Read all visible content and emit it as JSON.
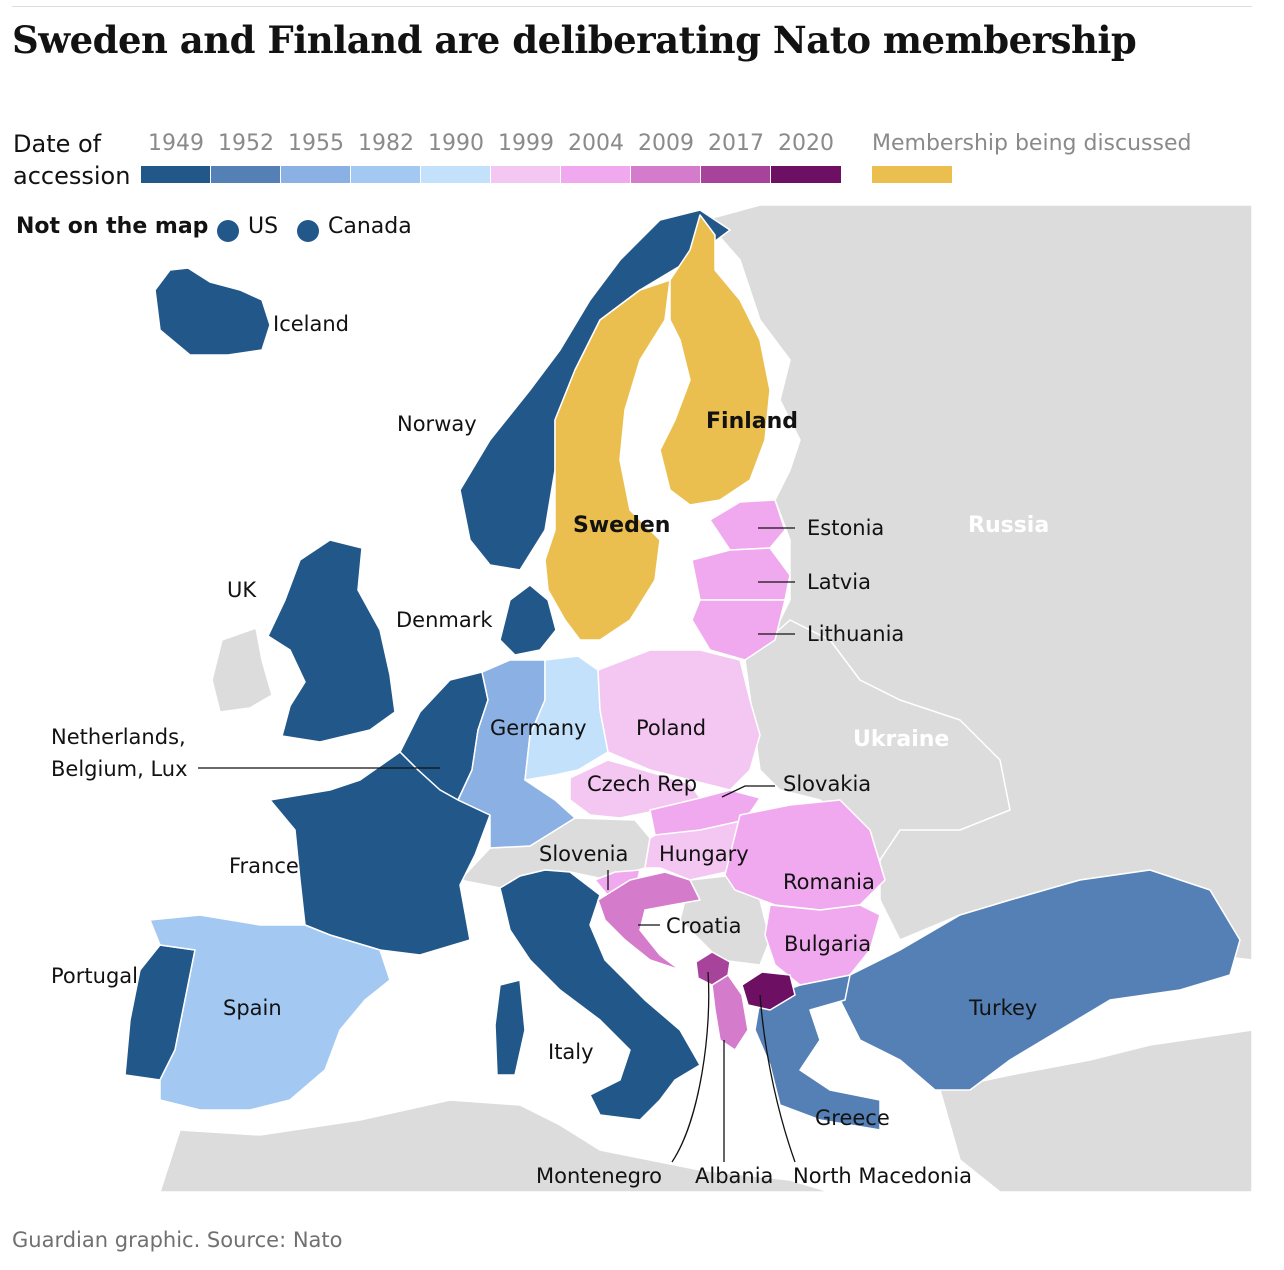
{
  "title": "Sweden and Finland are deliberating Nato membership",
  "legend": {
    "label_line1": "Date of",
    "label_line2": "accession",
    "years": [
      {
        "year": "1949",
        "color": "#22578a"
      },
      {
        "year": "1952",
        "color": "#5480b5"
      },
      {
        "year": "1955",
        "color": "#8bb0e4"
      },
      {
        "year": "1982",
        "color": "#a3c8f2"
      },
      {
        "year": "1990",
        "color": "#c4e1fb"
      },
      {
        "year": "1999",
        "color": "#f4c6f2"
      },
      {
        "year": "2004",
        "color": "#f0a8ee"
      },
      {
        "year": "2009",
        "color": "#d57bcb"
      },
      {
        "year": "2017",
        "color": "#a7439a"
      },
      {
        "year": "2020",
        "color": "#6d0f63"
      }
    ],
    "discussed": {
      "label": "Membership being discussed",
      "color": "#ebbf4f"
    }
  },
  "not_on_map": {
    "label": "Not on the map",
    "items": [
      {
        "name": "US",
        "color": "#22578a"
      },
      {
        "name": "Canada",
        "color": "#22578a"
      }
    ]
  },
  "colors": {
    "non_member": "#dcdcdc",
    "sea": "#ffffff",
    "border": "#ffffff"
  },
  "map_labels": {
    "iceland": "Iceland",
    "norway": "Norway",
    "finland": "Finland",
    "sweden": "Sweden",
    "russia": "Russia",
    "estonia": "Estonia",
    "latvia": "Latvia",
    "lithuania": "Lithuania",
    "uk": "UK",
    "denmark": "Denmark",
    "benelux_line1": "Netherlands,",
    "benelux_line2": "Belgium, Lux",
    "germany": "Germany",
    "poland": "Poland",
    "ukraine": "Ukraine",
    "czech": "Czech Rep",
    "slovakia": "Slovakia",
    "france": "France",
    "slovenia": "Slovenia",
    "hungary": "Hungary",
    "romania": "Romania",
    "croatia": "Croatia",
    "bulgaria": "Bulgaria",
    "portugal": "Portugal",
    "spain": "Spain",
    "turkey": "Turkey",
    "italy": "Italy",
    "greece": "Greece",
    "montenegro": "Montenegro",
    "albania": "Albania",
    "north_macedonia": "North Macedonia"
  },
  "source": "Guardian graphic. Source: Nato"
}
